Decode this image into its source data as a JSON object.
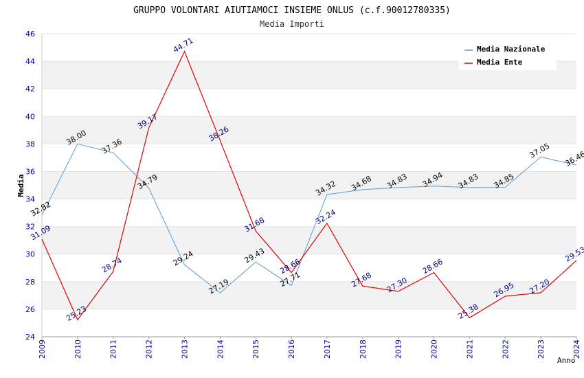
{
  "chart_data": {
    "type": "line",
    "title": "GRUPPO VOLONTARI AIUTIAMOCI INSIEME ONLUS (c.f.90012780335)",
    "subtitle": "Media Importi",
    "xlabel": "Anno",
    "ylabel": "Media",
    "ylim": [
      24,
      46
    ],
    "yticks": [
      "24",
      "26",
      "28",
      "30",
      "32",
      "34",
      "36",
      "38",
      "40",
      "42",
      "44",
      "46"
    ],
    "categories": [
      "2009",
      "2010",
      "2011",
      "2012",
      "2013",
      "2014",
      "2015",
      "2016",
      "2017",
      "2018",
      "2019",
      "2020",
      "2021",
      "2022",
      "2023",
      "2024"
    ],
    "grid": "horizontal bands",
    "legend_position": "top-right",
    "series": [
      {
        "name": "Media Nazionale",
        "color": "#5b9bd5",
        "values": [
          32.82,
          38.0,
          37.36,
          34.79,
          29.24,
          27.19,
          29.43,
          27.71,
          34.32,
          34.68,
          34.83,
          34.94,
          34.83,
          34.85,
          37.05,
          36.46
        ],
        "labels": [
          "32.82",
          "38.00",
          "37.36",
          "34.79",
          "29.24",
          "27.19",
          "29.43",
          "27.71",
          "34.32",
          "34.68",
          "34.83",
          "34.94",
          "34.83",
          "34.85",
          "37.05",
          "36.46"
        ]
      },
      {
        "name": "Media Ente",
        "color": "#e00000",
        "values": [
          31.09,
          25.23,
          28.74,
          39.17,
          44.71,
          38.26,
          31.68,
          28.66,
          32.24,
          27.68,
          27.3,
          28.66,
          25.38,
          26.95,
          27.2,
          29.53
        ],
        "labels": [
          "31.09",
          "25.23",
          "28.74",
          "39.17",
          "44.71",
          "38.26",
          "31.68",
          "28.66",
          "32.24",
          "27.68",
          "27.30",
          "28.66",
          "25.38",
          "26.95",
          "27.20",
          "29.53"
        ]
      }
    ]
  }
}
